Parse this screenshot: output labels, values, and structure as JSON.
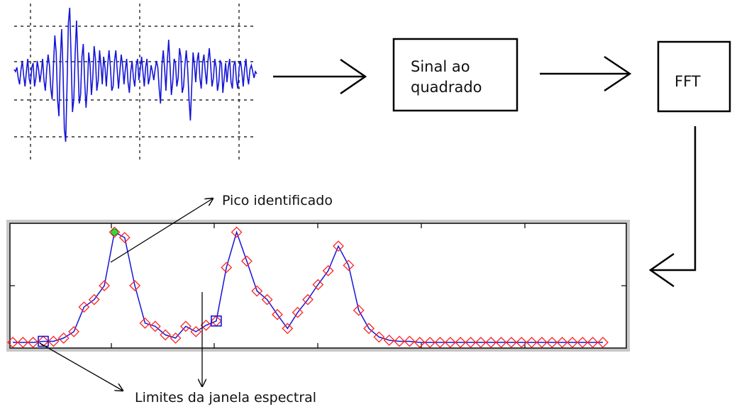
{
  "boxes": {
    "squared_signal": {
      "line1": "Sinal ao",
      "line2": "quadrado"
    },
    "fft": {
      "label": "FFT"
    }
  },
  "annotations": {
    "peak": "Pico identificado",
    "window_limits": "Limites da janela espectral"
  },
  "colors": {
    "signal": "#1515d8",
    "spectrum_line": "#1515d8",
    "spectrum_marker": "#ff2020",
    "peak_marker": "#3ad83a",
    "window_marker": "#1515d8",
    "axes_frame": "#c8c8c8"
  },
  "chart_data": [
    {
      "type": "line",
      "name": "time-signal",
      "x": [
        0,
        1,
        2,
        3,
        4,
        5,
        6,
        7,
        8,
        9,
        10,
        11,
        12,
        13,
        14,
        15,
        16,
        17,
        18,
        19,
        20,
        21,
        22,
        23,
        24,
        25,
        26,
        27,
        28,
        29,
        30,
        31,
        32,
        33,
        34,
        35,
        36,
        37,
        38,
        39,
        40,
        41,
        42,
        43,
        44,
        45,
        46,
        47,
        48,
        49,
        50,
        51,
        52,
        53,
        54,
        55,
        56,
        57,
        58,
        59,
        60,
        61,
        62,
        63,
        64,
        65,
        66,
        67,
        68,
        69,
        70,
        71,
        72,
        73,
        74,
        75,
        76,
        77,
        78,
        79,
        80,
        81,
        82,
        83,
        84,
        85,
        86,
        87,
        88,
        89,
        90,
        91,
        92,
        93,
        94,
        95,
        96,
        97,
        98,
        99,
        100,
        101,
        102,
        103,
        104,
        105,
        106,
        107,
        108,
        109,
        110,
        111,
        112,
        113,
        114,
        115,
        116,
        117,
        118,
        119,
        120,
        121,
        122,
        123,
        124,
        125,
        126,
        127,
        128,
        129,
        130,
        131,
        132,
        133,
        134,
        135,
        136,
        137,
        138,
        139,
        140,
        141,
        142,
        143,
        144,
        145,
        146,
        147,
        148,
        149,
        150,
        151,
        152,
        153,
        154,
        155,
        156,
        157,
        158,
        159,
        160,
        161,
        162,
        163,
        164,
        165,
        166,
        167,
        168,
        169,
        170,
        171,
        172,
        173,
        174,
        175,
        176,
        177,
        178,
        179
      ],
      "y": [
        0.1,
        0.05,
        0.15,
        -0.1,
        -0.25,
        0.1,
        0.3,
        -0.05,
        -0.3,
        0.05,
        0.35,
        -0.1,
        -0.25,
        0.15,
        0.25,
        -0.3,
        -0.1,
        0.3,
        0.1,
        -0.2,
        0.05,
        0.35,
        -0.15,
        -0.4,
        0.1,
        0.45,
        0.2,
        -0.35,
        -0.6,
        0.2,
        0.9,
        0.5,
        -0.6,
        -1.0,
        0.3,
        1.05,
        0.1,
        -1.3,
        -1.6,
        -0.3,
        1.2,
        1.55,
        0.4,
        -0.9,
        -0.6,
        0.5,
        1.25,
        0.3,
        -0.7,
        -0.5,
        0.4,
        0.7,
        -0.2,
        -0.8,
        -0.3,
        0.5,
        0.2,
        -0.5,
        -0.1,
        0.65,
        0.35,
        -0.4,
        -0.15,
        0.55,
        0.2,
        -0.25,
        0.4,
        0.15,
        -0.3,
        0.2,
        0.55,
        0.15,
        -0.4,
        -0.3,
        0.3,
        0.55,
        0.1,
        -0.35,
        0.05,
        0.45,
        0.2,
        -0.25,
        0.1,
        0.35,
        -0.2,
        -0.45,
        0.05,
        0.3,
        -0.1,
        -0.3,
        0.2,
        0.35,
        -0.15,
        0.1,
        0.4,
        0.05,
        -0.3,
        0.15,
        0.35,
        -0.25,
        -0.1,
        0.2,
        0.05,
        -0.15,
        0.1,
        0.3,
        0.15,
        -0.35,
        -0.7,
        0.2,
        0.55,
        0.1,
        -0.4,
        0.3,
        0.8,
        0.2,
        -0.5,
        -0.2,
        0.35,
        0.25,
        -0.3,
        -0.1,
        0.6,
        0.4,
        -0.45,
        -0.3,
        0.2,
        0.55,
        0.1,
        -0.6,
        -1.1,
        -0.3,
        0.5,
        0.2,
        -0.2,
        0.3,
        0.5,
        -0.1,
        -0.35,
        0.25,
        0.45,
        0.05,
        -0.25,
        0.3,
        0.6,
        0.2,
        -0.3,
        -0.1,
        0.35,
        0.15,
        -0.4,
        -0.2,
        0.3,
        0.25,
        -0.45,
        -0.1,
        0.25,
        -0.2,
        0.15,
        0.35,
        -0.2,
        -0.35,
        0.2,
        0.3,
        -0.15,
        -0.35,
        0.15,
        0.3,
        0.05,
        -0.3,
        0.1,
        0.35,
        -0.05,
        -0.25,
        0.1,
        0.2,
        0.05,
        -0.1,
        0.05,
        0.0
      ],
      "grid": true
    },
    {
      "type": "line",
      "name": "spectrum",
      "x": [
        0,
        1,
        2,
        3,
        4,
        5,
        6,
        7,
        8,
        9,
        10,
        11,
        12,
        13,
        14,
        15,
        16,
        17,
        18,
        19,
        20,
        21,
        22,
        23,
        24,
        25,
        26,
        27,
        28,
        29,
        30,
        31,
        32,
        33,
        34,
        35,
        36,
        37,
        38,
        39,
        40,
        41,
        42,
        43,
        44,
        45,
        46,
        47,
        48,
        49,
        50,
        51,
        52,
        53,
        54,
        55,
        56,
        57,
        58
      ],
      "y": [
        0.02,
        0.02,
        0.02,
        0.03,
        0.03,
        0.06,
        0.12,
        0.35,
        0.42,
        0.55,
        1.05,
        1.0,
        0.55,
        0.2,
        0.17,
        0.09,
        0.06,
        0.17,
        0.12,
        0.18,
        0.22,
        0.72,
        1.05,
        0.78,
        0.5,
        0.42,
        0.28,
        0.15,
        0.3,
        0.42,
        0.56,
        0.69,
        0.92,
        0.74,
        0.32,
        0.15,
        0.07,
        0.04,
        0.03,
        0.03,
        0.02,
        0.02,
        0.02,
        0.02,
        0.02,
        0.02,
        0.02,
        0.02,
        0.02,
        0.02,
        0.02,
        0.02,
        0.02,
        0.02,
        0.02,
        0.02,
        0.02,
        0.02,
        0.02
      ],
      "peak_index": 10,
      "window_limits_index": [
        3,
        20
      ],
      "ylim": [
        0,
        1.1
      ],
      "grid": false
    }
  ]
}
